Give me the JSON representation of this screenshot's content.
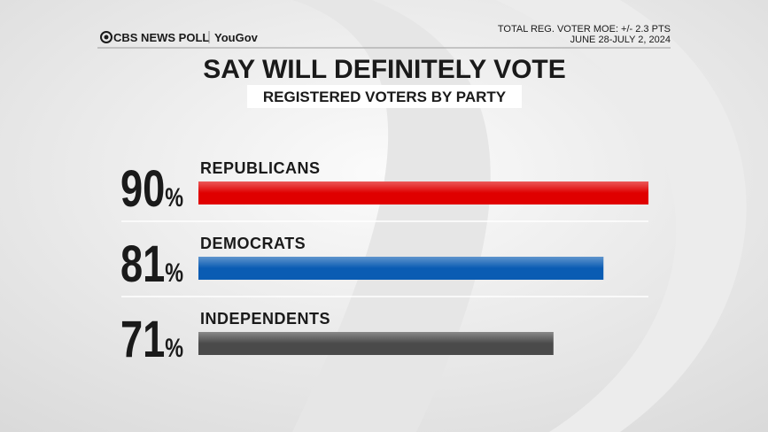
{
  "brand": {
    "name": "CBS NEWS POLL",
    "partner": "YouGov"
  },
  "notes": [
    "TOTAL REG. VOTER MOE: +/- 2.3 PTS",
    "JUNE 28-JULY 2, 2024"
  ],
  "chart_data": {
    "type": "hbar",
    "title": "SAY WILL DEFINITELY VOTE",
    "subtitle": "REGISTERED VOTERS BY PARTY",
    "categories": [
      "REPUBLICANS",
      "DEMOCRATS",
      "INDEPENDENTS"
    ],
    "values": [
      90,
      81,
      71
    ],
    "value_labels": [
      "90%",
      "81%",
      "71%"
    ],
    "colors": [
      "#e00000",
      "#0a5cb3",
      "#4a4a4a"
    ]
  }
}
